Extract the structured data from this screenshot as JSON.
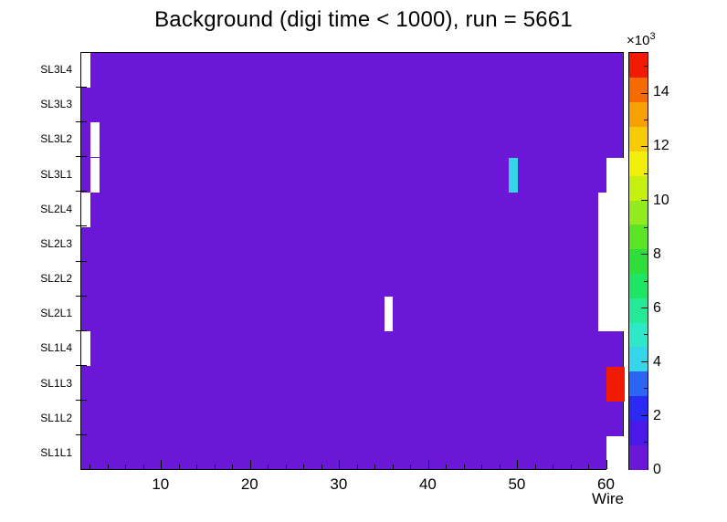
{
  "title": "Background (digi time < 1000), run = 5661",
  "chart_data": {
    "type": "heatmap",
    "title": "Background (digi time < 1000), run = 5661",
    "xlabel": "Wire",
    "x_range": [
      1,
      62
    ],
    "x_major_ticks": [
      10,
      20,
      30,
      40,
      50,
      60
    ],
    "x_minor_tick_step": 2,
    "y_categories_top_to_bottom": [
      "SL3L4",
      "SL3L3",
      "SL3L2",
      "SL3L1",
      "SL2L4",
      "SL2L3",
      "SL2L2",
      "SL2L1",
      "SL1L4",
      "SL1L3",
      "SL1L2",
      "SL1L1"
    ],
    "background_value_color": "#6a17d7",
    "empty_bin_color": "#ffffff",
    "zmax": 15500,
    "colorbar": {
      "scale_prefix": "×10",
      "scale_exponent": "3",
      "tick_values_thousands": [
        0,
        2,
        4,
        6,
        8,
        10,
        12,
        14
      ],
      "tick_scale": 1000,
      "palette_bottom_to_top": [
        "#6a17d7",
        "#4a19e8",
        "#2b2af5",
        "#2b65f0",
        "#35d6e9",
        "#2ee8c8",
        "#25e996",
        "#1fe565",
        "#2ede3a",
        "#5ee426",
        "#93ea1c",
        "#c6ef12",
        "#f2ef0a",
        "#f7cb06",
        "#f7a004",
        "#f66a02",
        "#f01b00"
      ]
    },
    "cells": [
      {
        "layer": "SL3L4",
        "wire_start": 1,
        "wire_end": 1,
        "value": null
      },
      {
        "layer": "SL3L2",
        "wire_start": 2,
        "wire_end": 2,
        "value": null
      },
      {
        "layer": "SL3L1",
        "wire_start": 2,
        "wire_end": 2,
        "value": null
      },
      {
        "layer": "SL2L4",
        "wire_start": 1,
        "wire_end": 1,
        "value": null
      },
      {
        "layer": "SL1L4",
        "wire_start": 1,
        "wire_end": 1,
        "value": null
      },
      {
        "layer": "SL2L1",
        "wire_start": 35,
        "wire_end": 35,
        "value": null
      },
      {
        "layer": "SL3L1",
        "wire_start": 49,
        "wire_end": 49,
        "value": 4000
      },
      {
        "layer": "SL3L1",
        "wire_start": 60,
        "wire_end": 61,
        "value": null
      },
      {
        "layer": "SL2L4",
        "wire_start": 59,
        "wire_end": 61,
        "value": null
      },
      {
        "layer": "SL2L3",
        "wire_start": 59,
        "wire_end": 61,
        "value": null
      },
      {
        "layer": "SL2L2",
        "wire_start": 59,
        "wire_end": 61,
        "value": null
      },
      {
        "layer": "SL2L1",
        "wire_start": 59,
        "wire_end": 61,
        "value": null
      },
      {
        "layer": "SL1L3",
        "wire_start": 60,
        "wire_end": 61,
        "value": 15000
      },
      {
        "layer": "SL1L1",
        "wire_start": 60,
        "wire_end": 61,
        "value": null
      }
    ]
  }
}
